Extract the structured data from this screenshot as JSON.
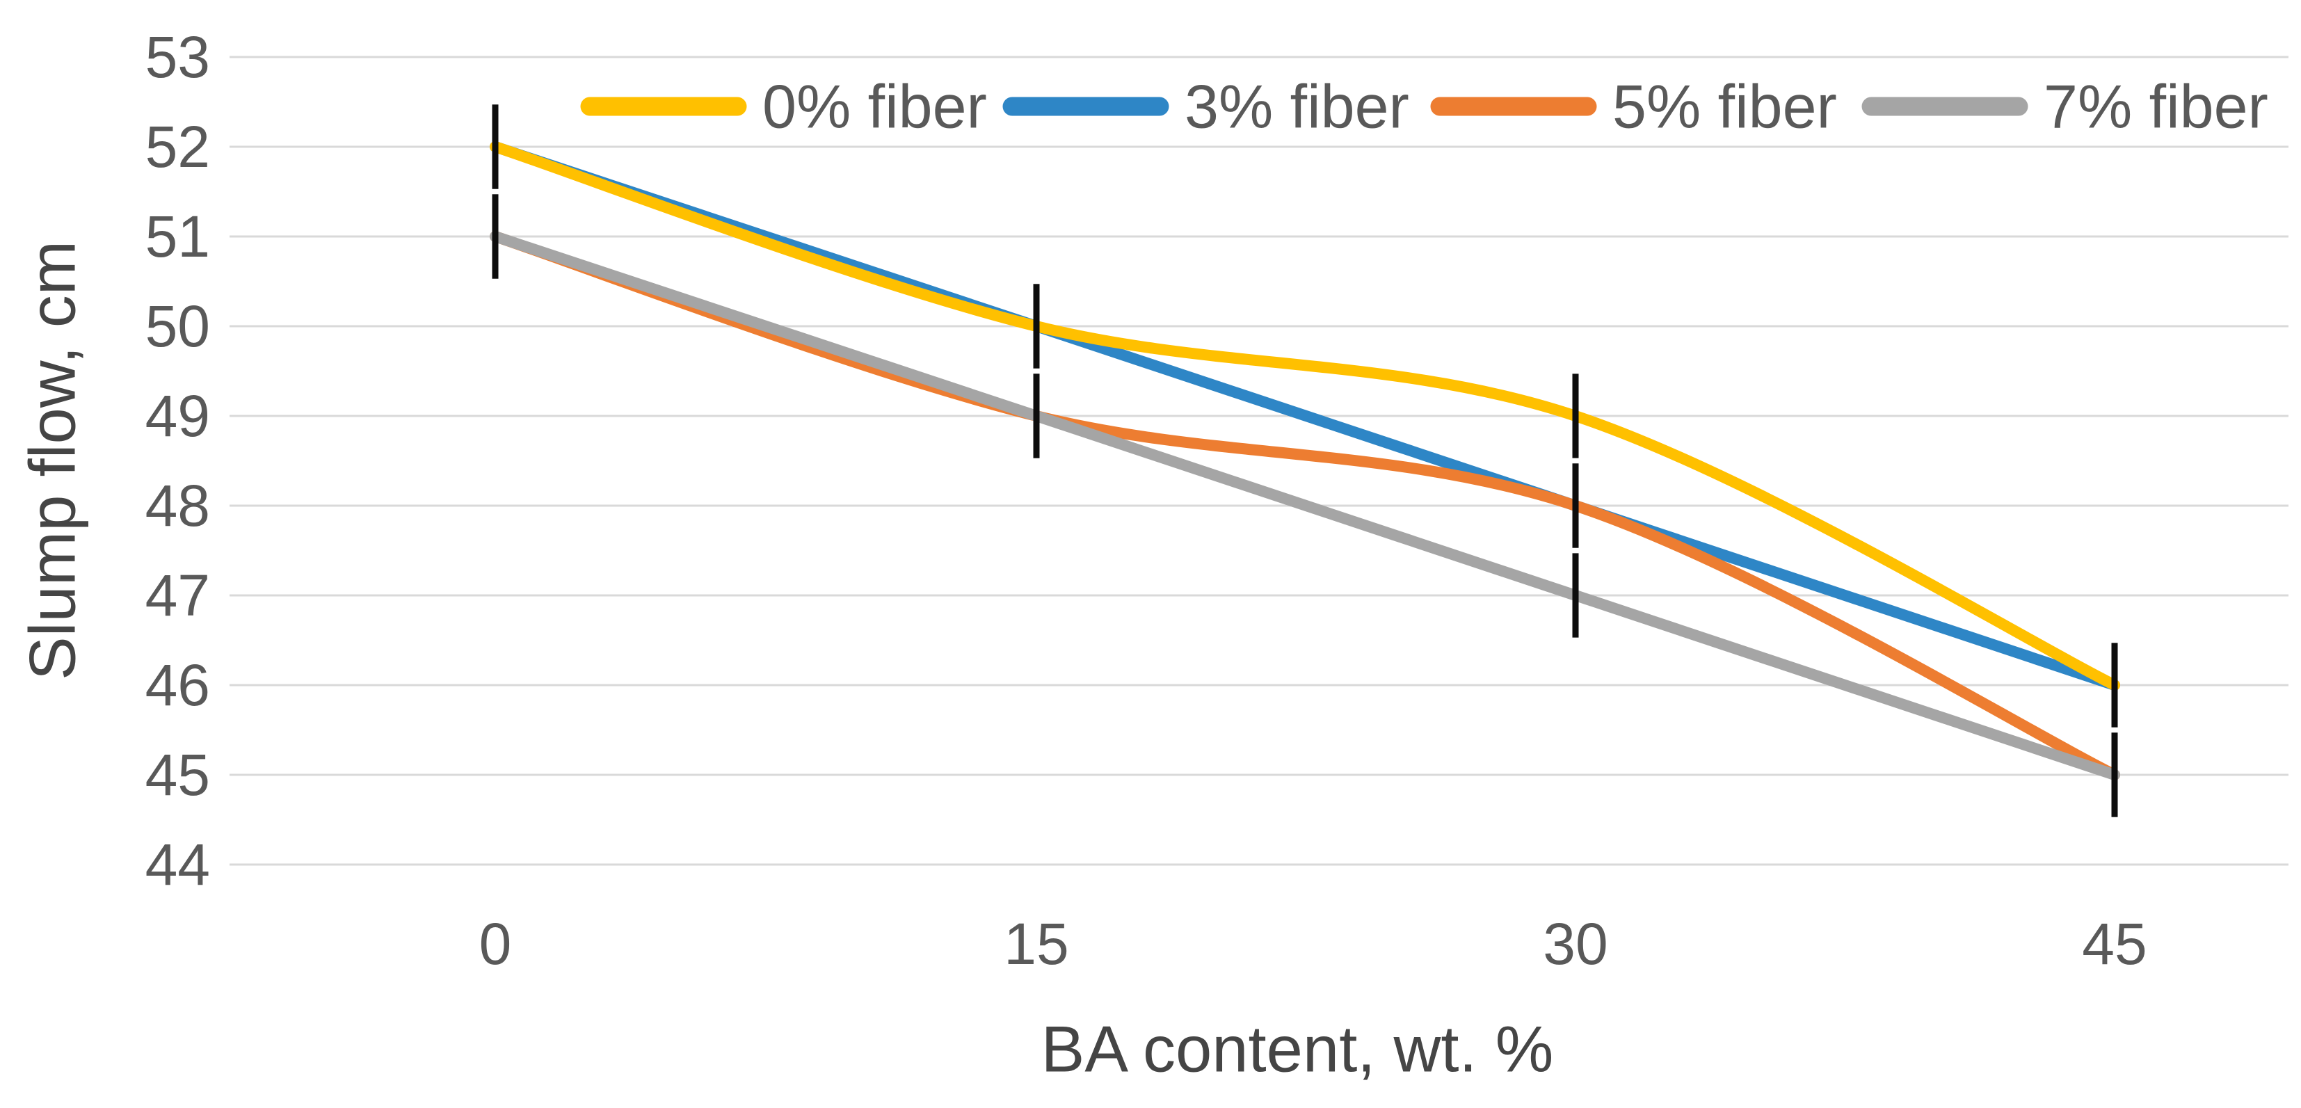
{
  "chart_data": {
    "type": "line",
    "title": "",
    "xlabel": "BA content, wt. %",
    "ylabel": "Slump flow, cm",
    "categories": [
      0,
      15,
      30,
      45
    ],
    "x_tick_labels": [
      "0",
      "15",
      "30",
      "45"
    ],
    "y_ticks": [
      44,
      45,
      46,
      47,
      48,
      49,
      50,
      51,
      52,
      53
    ],
    "ylim": [
      44,
      53
    ],
    "grid": "horizontal-only",
    "smoothed_lines": true,
    "legend_position": "top-inside",
    "series": [
      {
        "name": "0% fiber",
        "color": "#FFC000",
        "values": [
          52,
          50,
          49,
          46
        ]
      },
      {
        "name": "3% fiber",
        "color": "#2E86C6",
        "values": [
          52,
          50,
          48,
          46
        ]
      },
      {
        "name": "5% fiber",
        "color": "#ED7D31",
        "values": [
          51,
          49,
          48,
          45
        ]
      },
      {
        "name": "7% fiber",
        "color": "#A5A5A5",
        "values": [
          51,
          49,
          47,
          45
        ]
      }
    ],
    "error_bars": {
      "plus_minus": 0.5,
      "color": "#0d0d0d",
      "applies_to": "every point of every series"
    },
    "styles": {
      "background": "#FFFFFF",
      "gridline_color": "#D9D9D9",
      "tick_label_color": "#595959",
      "axis_title_color": "#454545"
    }
  }
}
